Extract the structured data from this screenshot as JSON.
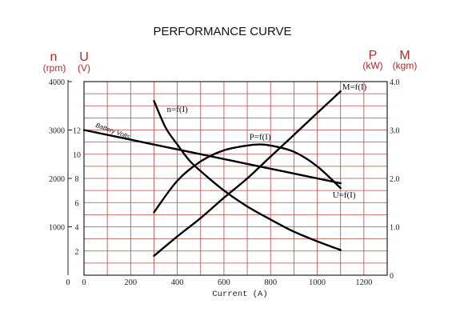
{
  "chart_data": {
    "type": "line",
    "title": "PERFORMANCE CURVE",
    "xlabel": "Current (A)",
    "xlim": [
      0,
      1300
    ],
    "x_ticks": [
      "0",
      "200",
      "400",
      "600",
      "800",
      "1000",
      "1200"
    ],
    "x_zero_label": "0",
    "grid": true,
    "left_axes": [
      {
        "symbol": "n",
        "unit": "(rpm)",
        "ylim": [
          0,
          4000
        ],
        "ticks": [
          "1000",
          "2000",
          "3000",
          "4000"
        ]
      },
      {
        "symbol": "U",
        "unit": "(V)",
        "ylim": [
          0,
          16
        ],
        "ticks": [
          "2",
          "4",
          "6",
          "8",
          "10",
          "12"
        ]
      }
    ],
    "right_axes": [
      {
        "symbol": "P",
        "unit": "(kW)",
        "ylim": [
          0,
          4
        ],
        "ticks": [
          "0",
          "1.0",
          "2.0",
          "3.0",
          "4.0"
        ]
      },
      {
        "symbol": "M",
        "unit": "(kgm)",
        "ylim": [
          0,
          4
        ],
        "ticks": [
          "0",
          "1.0",
          "2.0",
          "3.0",
          "4.0"
        ]
      }
    ],
    "series": [
      {
        "name": "n=f(I)",
        "axis": "n",
        "x": [
          300,
          350,
          400,
          450,
          500,
          600,
          700,
          800,
          900,
          1000,
          1100
        ],
        "y": [
          3600,
          3050,
          2700,
          2380,
          2150,
          1750,
          1420,
          1150,
          900,
          700,
          520
        ]
      },
      {
        "name": "P=f(I)",
        "axis": "P",
        "x": [
          300,
          400,
          500,
          600,
          700,
          750,
          800,
          900,
          1000,
          1100
        ],
        "y": [
          1.3,
          1.95,
          2.35,
          2.58,
          2.68,
          2.7,
          2.68,
          2.55,
          2.25,
          1.8
        ]
      },
      {
        "name": "M=f(I)",
        "axis": "M",
        "x": [
          300,
          400,
          500,
          600,
          700,
          800,
          900,
          1000,
          1100
        ],
        "y": [
          0.4,
          0.8,
          1.18,
          1.6,
          2.0,
          2.45,
          2.9,
          3.35,
          3.8
        ]
      },
      {
        "name": "U=f(I)",
        "axis": "U",
        "x": [
          0,
          200,
          400,
          600,
          800,
          1000,
          1100
        ],
        "y": [
          12.0,
          11.2,
          10.4,
          9.6,
          8.8,
          8.0,
          7.6
        ]
      }
    ],
    "annotations": [
      "Battery Volts"
    ]
  }
}
